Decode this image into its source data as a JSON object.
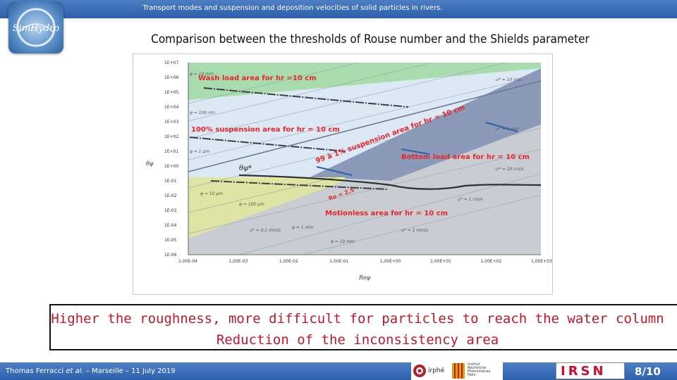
{
  "header": {
    "top_title": "Transport modes and suspension and deposition velocities of solid particles in rivers.",
    "logo_text": "SimHydro"
  },
  "slide": {
    "title": "Comparison between the thresholds of Rouse number and the  Shields parameter"
  },
  "figure": {
    "y_axis_label": "θφ",
    "x_axis_label": "Reφ",
    "y_ticks": [
      "1E+07",
      "1E+06",
      "1E+05",
      "1E+04",
      "1E+03",
      "1E+02",
      "1E+01",
      "1E+00",
      "1E-01",
      "1E-02",
      "1E-03",
      "1E-04",
      "1E-05",
      "1E-06"
    ],
    "x_ticks": [
      "1,00E-04",
      "1,00E-03",
      "1,00E-02",
      "1,00E-01",
      "1,00E+00",
      "1,00E+01",
      "1,00E+02",
      "1,00E+03"
    ],
    "area_labels": {
      "wash_load": "Wash load area for hr =10 cm",
      "suspension_100": "100% suspension area for hr = 10 cm",
      "suspension_99": "99 à 1% suspension area for hr = 10 cm",
      "bottom_load": "Bottom load area for hr = 10 cm",
      "motionless": "Motionless area for hr = 10 cm"
    },
    "annotations": {
      "theta_star": "θφ*",
      "rouse": "Ro = 2,5",
      "u_10mps": "u* = 10 m/s",
      "u_1mps": "u* = 1 m/s",
      "u_10cmps": "u* = 10 cm/s",
      "u_1cmps": "u* = 1 cm/s",
      "u_1mmps": "u* = 1 mm/s",
      "u_01mmps": "u* = 0,1 mm/s",
      "phi_10mm": "φ = 10 mm",
      "phi_100nm": "φ = 100 nm",
      "phi_1um": "φ = 1 μm",
      "phi_10um": "φ = 10 μm",
      "phi_100um": "φ = 100 μm",
      "phi_1mm": "φ = 1 mm",
      "phi_10mm_low": "φ = 10 mm"
    },
    "colors": {
      "wash": "#a8dcae",
      "suspension": "#dce8f4",
      "transition": "#8a9ab8",
      "bottom": "#c9cdd2",
      "motionless": "#eaf08a",
      "label_red": "#e8262a"
    }
  },
  "conclusion": {
    "line1": "Higher the roughness, more difficult for particles to reach the water column",
    "line2": "Reduction of the inconsistency area"
  },
  "footer": {
    "author": "Thomas Ferracci",
    "et_al": "et al.",
    "venue": " – Marseille – 11 July 2019",
    "irphe": "irphé",
    "amu_lines": [
      "Institut",
      "Recherche",
      "Phénomènes",
      "Hors",
      "Équilibre"
    ],
    "irsn": "IRSN",
    "page": "8/10"
  }
}
